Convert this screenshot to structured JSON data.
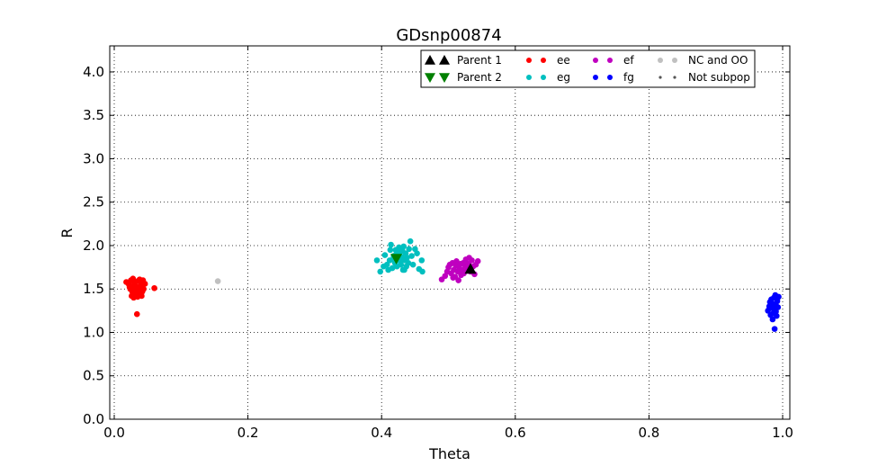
{
  "chart_data": {
    "type": "scatter",
    "title": "GDsnp00874",
    "xlabel": "Theta",
    "ylabel": "R",
    "xlim": [
      0.0,
      1.0
    ],
    "ylim": [
      0.0,
      4.3
    ],
    "xticks": [
      "0.0",
      "0.2",
      "0.4",
      "0.6",
      "0.8",
      "1.0"
    ],
    "yticks": [
      "0.0",
      "0.5",
      "1.0",
      "1.5",
      "2.0",
      "2.5",
      "3.0",
      "3.5",
      "4.0"
    ],
    "grid": true,
    "legend_position": "top-right",
    "legend": [
      {
        "label": "Parent 1",
        "marker": "triangle-up",
        "color": "#000000"
      },
      {
        "label": "Parent 2",
        "marker": "triangle-down",
        "color": "#008000"
      },
      {
        "label": "ee",
        "marker": "circle",
        "color": "#ff0000"
      },
      {
        "label": "eg",
        "marker": "circle",
        "color": "#00bfbf"
      },
      {
        "label": "ef",
        "marker": "circle",
        "color": "#bf00bf"
      },
      {
        "label": "fg",
        "marker": "circle",
        "color": "#0000ff"
      },
      {
        "label": "NC and OO",
        "marker": "circle",
        "color": "#c0c0c0"
      },
      {
        "label": "Not subpop",
        "marker": "small-dot",
        "color": "#555555"
      }
    ],
    "series": [
      {
        "name": "ee",
        "color": "#ff0000",
        "points": [
          [
            0.018,
            1.58
          ],
          [
            0.022,
            1.55
          ],
          [
            0.025,
            1.6
          ],
          [
            0.028,
            1.62
          ],
          [
            0.03,
            1.57
          ],
          [
            0.032,
            1.53
          ],
          [
            0.035,
            1.59
          ],
          [
            0.038,
            1.61
          ],
          [
            0.04,
            1.55
          ],
          [
            0.043,
            1.6
          ],
          [
            0.024,
            1.5
          ],
          [
            0.027,
            1.47
          ],
          [
            0.03,
            1.45
          ],
          [
            0.033,
            1.48
          ],
          [
            0.036,
            1.52
          ],
          [
            0.039,
            1.44
          ],
          [
            0.042,
            1.47
          ],
          [
            0.026,
            1.42
          ],
          [
            0.029,
            1.4
          ],
          [
            0.032,
            1.43
          ],
          [
            0.035,
            1.41
          ],
          [
            0.038,
            1.46
          ],
          [
            0.041,
            1.42
          ],
          [
            0.044,
            1.5
          ],
          [
            0.023,
            1.52
          ],
          [
            0.031,
            1.51
          ],
          [
            0.037,
            1.49
          ],
          [
            0.046,
            1.56
          ],
          [
            0.06,
            1.51
          ],
          [
            0.034,
            1.21
          ],
          [
            0.028,
            1.53
          ],
          [
            0.04,
            1.52
          ]
        ]
      },
      {
        "name": "NC and OO",
        "color": "#c0c0c0",
        "points": [
          [
            0.155,
            1.59
          ]
        ]
      },
      {
        "name": "eg",
        "color": "#00bfbf",
        "points": [
          [
            0.393,
            1.83
          ],
          [
            0.398,
            1.7
          ],
          [
            0.403,
            1.76
          ],
          [
            0.405,
            1.89
          ],
          [
            0.408,
            1.78
          ],
          [
            0.41,
            1.72
          ],
          [
            0.412,
            1.83
          ],
          [
            0.413,
            1.95
          ],
          [
            0.414,
            2.01
          ],
          [
            0.416,
            1.74
          ],
          [
            0.418,
            1.88
          ],
          [
            0.42,
            1.8
          ],
          [
            0.421,
            1.95
          ],
          [
            0.422,
            1.9
          ],
          [
            0.423,
            1.76
          ],
          [
            0.425,
            1.85
          ],
          [
            0.426,
            1.98
          ],
          [
            0.427,
            1.92
          ],
          [
            0.428,
            1.82
          ],
          [
            0.429,
            1.78
          ],
          [
            0.43,
            1.87
          ],
          [
            0.431,
            1.94
          ],
          [
            0.432,
            1.72
          ],
          [
            0.433,
            1.99
          ],
          [
            0.435,
            1.83
          ],
          [
            0.436,
            1.91
          ],
          [
            0.437,
            1.76
          ],
          [
            0.438,
            1.86
          ],
          [
            0.44,
            1.8
          ],
          [
            0.441,
            1.96
          ],
          [
            0.443,
            2.05
          ],
          [
            0.445,
            1.88
          ],
          [
            0.447,
            1.78
          ],
          [
            0.45,
            1.96
          ],
          [
            0.453,
            1.91
          ],
          [
            0.456,
            1.73
          ],
          [
            0.46,
            1.83
          ],
          [
            0.461,
            1.7
          ],
          [
            0.434,
            1.72
          ],
          [
            0.417,
            1.84
          ]
        ]
      },
      {
        "name": "ef",
        "color": "#bf00bf",
        "points": [
          [
            0.49,
            1.61
          ],
          [
            0.495,
            1.65
          ],
          [
            0.498,
            1.7
          ],
          [
            0.5,
            1.75
          ],
          [
            0.502,
            1.78
          ],
          [
            0.504,
            1.68
          ],
          [
            0.506,
            1.8
          ],
          [
            0.508,
            1.72
          ],
          [
            0.51,
            1.64
          ],
          [
            0.511,
            1.77
          ],
          [
            0.512,
            1.82
          ],
          [
            0.514,
            1.7
          ],
          [
            0.515,
            1.6
          ],
          [
            0.516,
            1.75
          ],
          [
            0.518,
            1.79
          ],
          [
            0.519,
            1.66
          ],
          [
            0.52,
            1.72
          ],
          [
            0.522,
            1.8
          ],
          [
            0.523,
            1.68
          ],
          [
            0.525,
            1.77
          ],
          [
            0.526,
            1.84
          ],
          [
            0.528,
            1.73
          ],
          [
            0.53,
            1.79
          ],
          [
            0.531,
            1.86
          ],
          [
            0.533,
            1.7
          ],
          [
            0.535,
            1.83
          ],
          [
            0.537,
            1.76
          ],
          [
            0.539,
            1.67
          ],
          [
            0.541,
            1.78
          ],
          [
            0.544,
            1.82
          ],
          [
            0.507,
            1.63
          ],
          [
            0.517,
            1.7
          ]
        ]
      },
      {
        "name": "fg",
        "color": "#0000ff",
        "points": [
          [
            0.978,
            1.25
          ],
          [
            0.98,
            1.3
          ],
          [
            0.981,
            1.35
          ],
          [
            0.982,
            1.2
          ],
          [
            0.983,
            1.38
          ],
          [
            0.984,
            1.28
          ],
          [
            0.985,
            1.33
          ],
          [
            0.986,
            1.22
          ],
          [
            0.987,
            1.4
          ],
          [
            0.988,
            1.26
          ],
          [
            0.989,
            1.43
          ],
          [
            0.99,
            1.31
          ],
          [
            0.991,
            1.19
          ],
          [
            0.992,
            1.36
          ],
          [
            0.993,
            1.29
          ],
          [
            0.994,
            1.41
          ],
          [
            0.988,
            1.04
          ],
          [
            0.985,
            1.15
          ],
          [
            0.99,
            1.24
          ],
          [
            0.983,
            1.32
          ]
        ]
      }
    ],
    "markers": [
      {
        "name": "Parent 1",
        "marker": "triangle-up",
        "color": "#000000",
        "x": 0.533,
        "y": 1.73
      },
      {
        "name": "Parent 2",
        "marker": "triangle-down",
        "color": "#008000",
        "x": 0.422,
        "y": 1.85
      }
    ]
  }
}
